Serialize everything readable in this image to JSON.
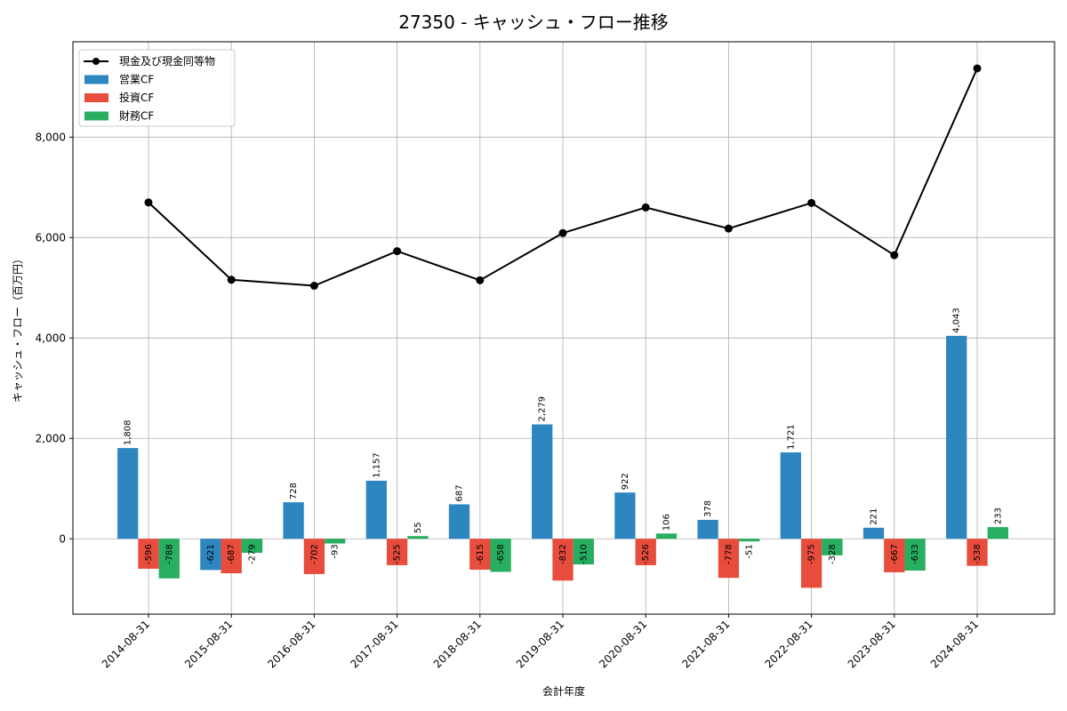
{
  "chart_data": {
    "type": "bar",
    "title": "27350 - キャッシュ・フロー推移",
    "xlabel": "会計年度",
    "ylabel": "キャッシュ・フロー（百万円）",
    "ylim": [
      -1500,
      9900
    ],
    "yticks": [
      0,
      2000,
      4000,
      6000,
      8000
    ],
    "ytick_labels": [
      "0",
      "2,000",
      "4,000",
      "6,000",
      "8,000"
    ],
    "grid": true,
    "legend_position": "top-left",
    "categories": [
      "2014-08-31",
      "2015-08-31",
      "2016-08-31",
      "2017-08-31",
      "2018-08-31",
      "2019-08-31",
      "2020-08-31",
      "2021-08-31",
      "2022-08-31",
      "2023-08-31",
      "2024-08-31"
    ],
    "series": [
      {
        "name": "営業CF",
        "kind": "bar",
        "color": "#2e86c1",
        "values": [
          1808,
          -621,
          728,
          1157,
          687,
          2279,
          922,
          378,
          1721,
          221,
          4043
        ],
        "labels": [
          "1,808",
          "-621",
          "728",
          "1,157",
          "687",
          "2,279",
          "922",
          "378",
          "1,721",
          "221",
          "4,043"
        ]
      },
      {
        "name": "投資CF",
        "kind": "bar",
        "color": "#e74c3c",
        "values": [
          -596,
          -687,
          -702,
          -525,
          -615,
          -832,
          -526,
          -778,
          -975,
          -667,
          -538
        ],
        "labels": [
          "-596",
          "-687",
          "-702",
          "-525",
          "-615",
          "-832",
          "-526",
          "-778",
          "-975",
          "-667",
          "-538"
        ]
      },
      {
        "name": "財務CF",
        "kind": "bar",
        "color": "#27ae60",
        "values": [
          -788,
          -279,
          -93,
          55,
          -658,
          -510,
          106,
          -51,
          -328,
          -633,
          233
        ],
        "labels": [
          "-788",
          "-279",
          "-93",
          "55",
          "-658",
          "-510",
          "106",
          "-51",
          "-328",
          "-633",
          "233"
        ]
      },
      {
        "name": "現金及び現金同等物",
        "kind": "line",
        "color": "#000000",
        "values": [
          6700,
          5160,
          5040,
          5730,
          5150,
          6090,
          6600,
          6180,
          6690,
          5650,
          9370
        ]
      }
    ]
  }
}
